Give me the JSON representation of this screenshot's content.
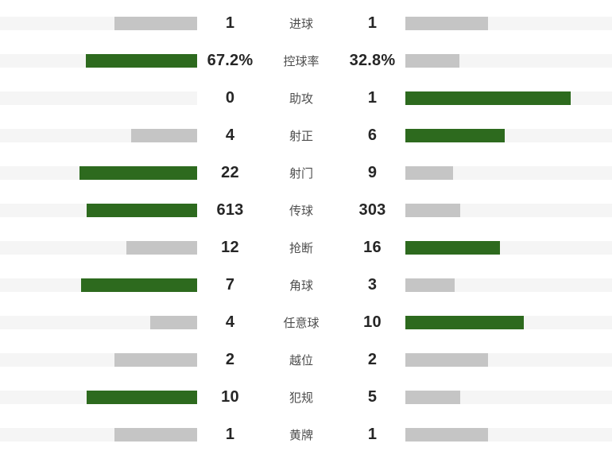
{
  "colors": {
    "win_bar": "#2d6a1e",
    "neutral_bar": "#c5c5c5",
    "bar_track": "#f5f5f5",
    "value_text": "#262626",
    "label_text": "#4d4d4d",
    "background": "#ffffff"
  },
  "stats": {
    "rows": [
      {
        "label": "进球",
        "left": "1",
        "right": "1",
        "left_num": 1,
        "right_num": 1
      },
      {
        "label": "控球率",
        "left": "67.2%",
        "right": "32.8%",
        "left_num": 67.2,
        "right_num": 32.8
      },
      {
        "label": "助攻",
        "left": "0",
        "right": "1",
        "left_num": 0,
        "right_num": 1
      },
      {
        "label": "射正",
        "left": "4",
        "right": "6",
        "left_num": 4,
        "right_num": 6
      },
      {
        "label": "射门",
        "left": "22",
        "right": "9",
        "left_num": 22,
        "right_num": 9
      },
      {
        "label": "传球",
        "left": "613",
        "right": "303",
        "left_num": 613,
        "right_num": 303
      },
      {
        "label": "抢断",
        "left": "12",
        "right": "16",
        "left_num": 12,
        "right_num": 16
      },
      {
        "label": "角球",
        "left": "7",
        "right": "3",
        "left_num": 7,
        "right_num": 3
      },
      {
        "label": "任意球",
        "left": "4",
        "right": "10",
        "left_num": 4,
        "right_num": 10
      },
      {
        "label": "越位",
        "left": "2",
        "right": "2",
        "left_num": 2,
        "right_num": 2
      },
      {
        "label": "犯规",
        "left": "10",
        "right": "5",
        "left_num": 10,
        "right_num": 5
      },
      {
        "label": "黄牌",
        "left": "1",
        "right": "1",
        "left_num": 1,
        "right_num": 1
      }
    ]
  },
  "chart_data": {
    "type": "bar",
    "subtype": "bidirectional-comparison",
    "title": "",
    "categories": [
      "进球",
      "控球率",
      "助攻",
      "射正",
      "射门",
      "传球",
      "抢断",
      "角球",
      "任意球",
      "越位",
      "犯规",
      "黄牌"
    ],
    "series": [
      {
        "name": "home-team",
        "side": "left",
        "values": [
          1,
          67.2,
          0,
          4,
          22,
          613,
          12,
          7,
          4,
          2,
          10,
          1
        ]
      },
      {
        "name": "away-team",
        "side": "right",
        "values": [
          1,
          32.8,
          1,
          6,
          9,
          303,
          16,
          3,
          10,
          2,
          5,
          1
        ]
      }
    ],
    "value_label_overrides": {
      "控球率": {
        "left": "67.2%",
        "right": "32.8%"
      }
    },
    "xlabel": "",
    "ylabel": "",
    "grid": false,
    "legend": false,
    "bar_color_rule": "higher value in a row is green (#2d6a1e); equal or lower value is gray (#c5c5c5)",
    "bar_scaling": "each bar width = value / (left+right) of its row; bars grow outward from center"
  }
}
